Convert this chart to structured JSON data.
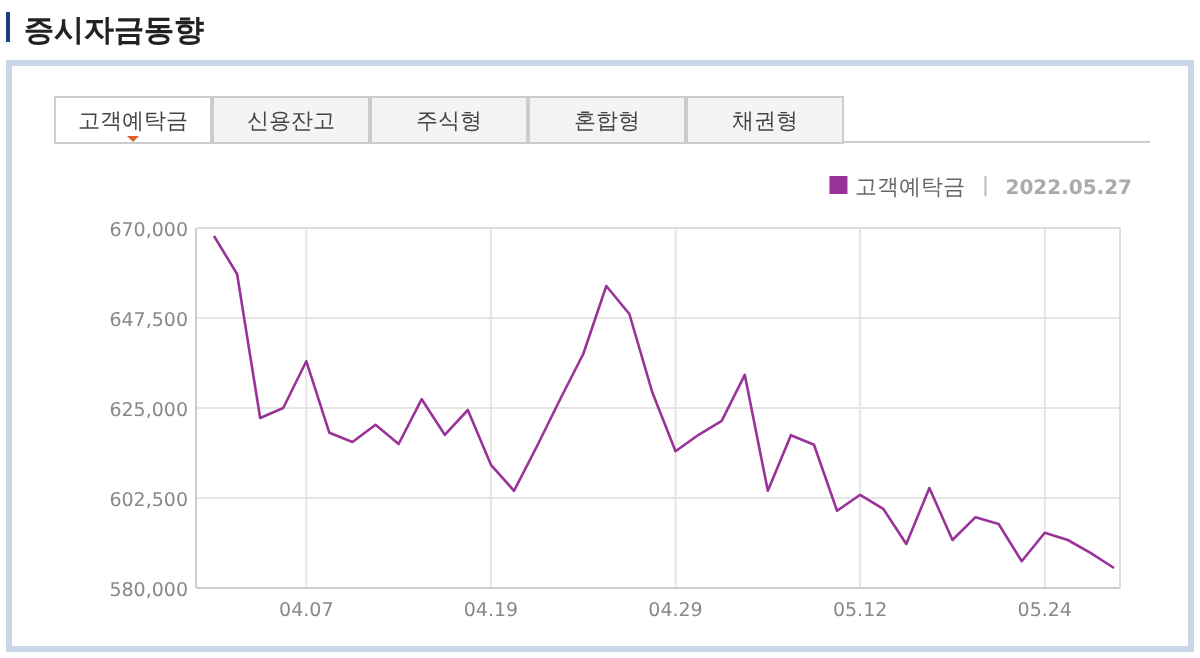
{
  "chart_data": {
    "type": "line",
    "title": "증시자금동향",
    "annotations": [
      "고객예탁금",
      "신용잔고",
      "주식형",
      "혼합형",
      "채권형",
      "2022.05.27"
    ],
    "categories": [
      null,
      null,
      null,
      null,
      "04.07",
      null,
      null,
      null,
      null,
      null,
      null,
      null,
      "04.19",
      null,
      null,
      null,
      null,
      null,
      null,
      null,
      "04.29",
      null,
      null,
      null,
      null,
      null,
      null,
      null,
      "05.12",
      null,
      null,
      null,
      null,
      null,
      null,
      null,
      "05.24",
      null,
      null,
      null
    ],
    "series": [
      {
        "name": "고객예탁금",
        "color": "#993399",
        "values": [
          668000,
          658500,
          622500,
          625000,
          636700,
          618800,
          616500,
          620800,
          616000,
          627200,
          618300,
          624500,
          610800,
          604300,
          615500,
          627200,
          638500,
          655500,
          648500,
          628800,
          614200,
          618300,
          621800,
          633300,
          604300,
          618200,
          615800,
          599300,
          603300,
          599800,
          591000,
          605000,
          592000,
          597700,
          596000,
          586700,
          593800,
          592000,
          588700,
          585000
        ]
      }
    ],
    "ylim": [
      580000,
      670000
    ],
    "yticks": [
      {
        "value": 580000,
        "label": "580,000"
      },
      {
        "value": 602500,
        "label": "602,500"
      },
      {
        "value": 625000,
        "label": "625,000"
      },
      {
        "value": 647500,
        "label": "647,500"
      },
      {
        "value": 670000,
        "label": "670,000"
      }
    ],
    "grid": true,
    "legend": "top right"
  }
}
